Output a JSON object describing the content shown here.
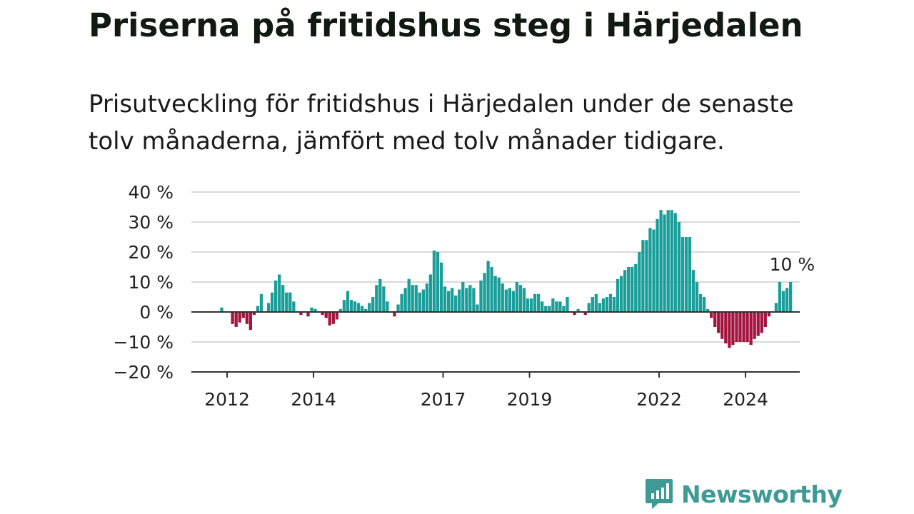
{
  "title": "Priserna på fritidshus steg i Härjedalen",
  "subtitle": "Prisutveckling för fritidshus i Härjedalen under de senaste tolv månaderna, jämfört med tolv månader tidigare.",
  "brand": {
    "name": "Newsworthy",
    "color": "#3d9a94"
  },
  "chart_data": {
    "type": "bar",
    "title": "Priserna på fritidshus steg i Härjedalen",
    "xlabel": "",
    "ylabel": "",
    "ylim": [
      -20,
      40
    ],
    "y_ticks": [
      40,
      30,
      20,
      10,
      0,
      -10,
      -20
    ],
    "y_tick_labels": [
      "40 %",
      "30 %",
      "20 %",
      "10 %",
      "0 %",
      "−10 %",
      "−20 %"
    ],
    "x_tick_labels": [
      "2012",
      "2014",
      "2017",
      "2019",
      "2022",
      "2024"
    ],
    "x_tick_years": [
      2012,
      2014,
      2017,
      2019,
      2022,
      2024
    ],
    "start_year": 2011,
    "start_month": 11,
    "annotation": "10 %",
    "grid": true,
    "legend": "none",
    "colors": {
      "positive": "#1a9e99",
      "negative": "#a3143f",
      "grid": "#d9d9d9",
      "axis": "#333333"
    },
    "values": [
      1.5,
      0,
      0,
      -4,
      -5,
      -3.5,
      -2,
      -4,
      -6,
      -1,
      2,
      6,
      0,
      3,
      6.5,
      10.5,
      12.5,
      9,
      6.5,
      6.5,
      3.5,
      0,
      -1,
      0,
      -1.5,
      1.5,
      1,
      0,
      -1,
      -2,
      -4.5,
      -4,
      -2.5,
      1,
      4,
      7,
      4,
      3.5,
      3,
      2,
      1,
      3,
      5,
      9,
      11,
      8.5,
      3.5,
      0,
      -1.5,
      2.5,
      6,
      8,
      11,
      9,
      9,
      6.5,
      7.5,
      9.5,
      12.5,
      20.5,
      20,
      16.5,
      8.5,
      7,
      8,
      5.5,
      7.5,
      10,
      8,
      9,
      8,
      2.5,
      10.5,
      13,
      17,
      15,
      12,
      11.5,
      9.5,
      7.5,
      8,
      7,
      10,
      9,
      8,
      4.5,
      4.5,
      6,
      6,
      3.5,
      2,
      2,
      4.5,
      3.5,
      3.5,
      2,
      5,
      0,
      -1,
      1,
      0,
      -1,
      3,
      5,
      6,
      3,
      4.5,
      5,
      6,
      5,
      11,
      12,
      14,
      15,
      15,
      16,
      20,
      24,
      24,
      28,
      27.5,
      31,
      34,
      32.5,
      34,
      34,
      33,
      30,
      25,
      25,
      25,
      14,
      10,
      6,
      5,
      1,
      -2,
      -5,
      -7,
      -9,
      -10.5,
      -12,
      -11,
      -10,
      -10,
      -10,
      -10,
      -11,
      -9,
      -8,
      -7,
      -5,
      -1.5,
      0,
      3,
      10,
      7,
      8,
      10
    ]
  }
}
